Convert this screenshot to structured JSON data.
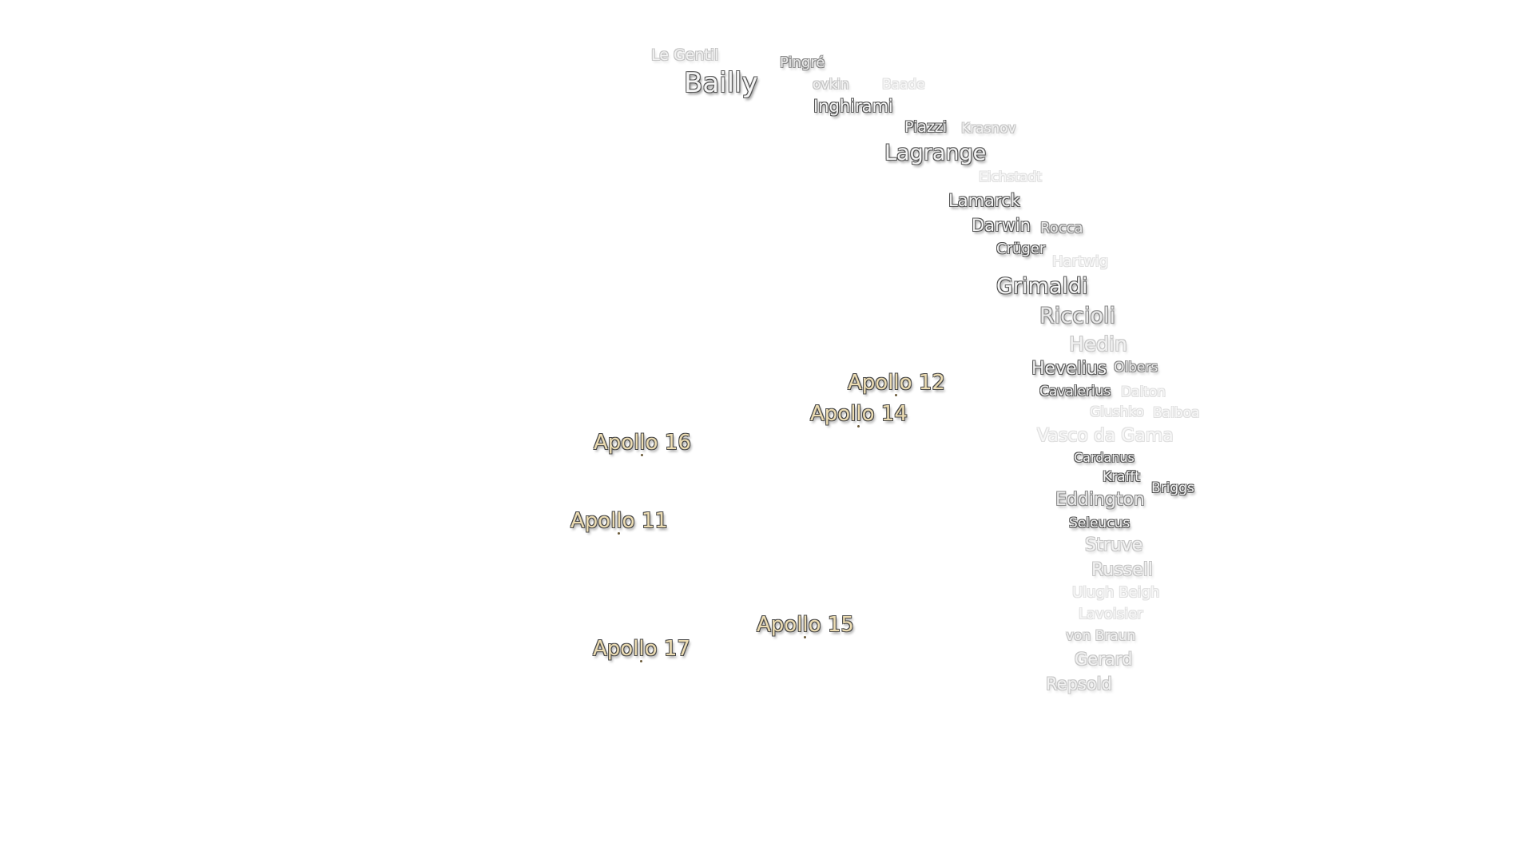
{
  "craters": [
    {
      "name": "Le Gentil"
    },
    {
      "name": "Bailly"
    },
    {
      "name": "Pingré"
    },
    {
      "name": "ovkin"
    },
    {
      "name": "Inghirami"
    },
    {
      "name": "Baade"
    },
    {
      "name": "Piazzi"
    },
    {
      "name": "Lagrange"
    },
    {
      "name": "Krasnov"
    },
    {
      "name": "Eichstadt"
    },
    {
      "name": "Lamarck"
    },
    {
      "name": "Darwin"
    },
    {
      "name": "Crüger"
    },
    {
      "name": "Rocca"
    },
    {
      "name": "Hartwig"
    },
    {
      "name": "Grimaldi"
    },
    {
      "name": "Riccioli"
    },
    {
      "name": "Hedin"
    },
    {
      "name": "Hevelius"
    },
    {
      "name": "Cavalerius"
    },
    {
      "name": "Olbers"
    },
    {
      "name": "Glushko"
    },
    {
      "name": "Vasco da Gama"
    },
    {
      "name": "Cardanus"
    },
    {
      "name": "Dalton"
    },
    {
      "name": "Krafft"
    },
    {
      "name": "Balboa"
    },
    {
      "name": "Eddington"
    },
    {
      "name": "Seleucus"
    },
    {
      "name": "Struve"
    },
    {
      "name": "Russell"
    },
    {
      "name": "Briggs"
    },
    {
      "name": "Ulugh Beigh"
    },
    {
      "name": "Lavoisier"
    },
    {
      "name": "von Braun"
    },
    {
      "name": "Gerard"
    },
    {
      "name": "Repsold"
    }
  ],
  "landing_sites": [
    {
      "name": "Apollo 12"
    },
    {
      "name": "Apollo 14"
    },
    {
      "name": "Apollo 16"
    },
    {
      "name": "Apollo 11"
    },
    {
      "name": "Apollo 15"
    },
    {
      "name": "Apollo 17"
    }
  ],
  "colors": {
    "landing_site_label": "#ecdcb2",
    "crater_label": "#f4f4f4",
    "background": "#ffffff"
  }
}
